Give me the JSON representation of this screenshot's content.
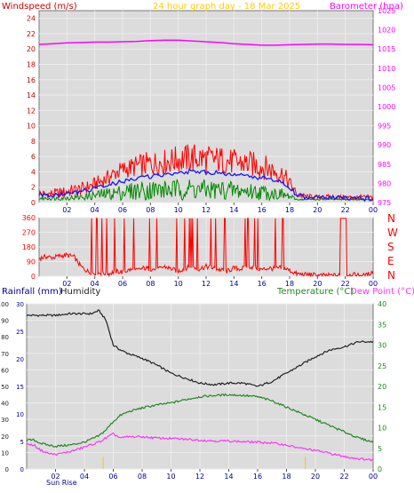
{
  "colors": {
    "background": "#ffffff",
    "plot_bg": "#dcdcdc",
    "wind_axis": "#cc0000",
    "gust": "#ff0000",
    "average": "#1515ff",
    "average_low": "#008800",
    "barometer": "#ff00ff",
    "title": "#ffcc00",
    "direction": "#ff0000",
    "rain_axis": "#000099",
    "humidity": "#222222",
    "temperature": "#228822",
    "dewpoint": "#ff33ff",
    "sun": "#e6d200"
  },
  "top_panel": {
    "title": "24 hour graph day - 18 Mar 2025",
    "left_label": "Windspeed (m/s)",
    "right_label": "Barometer (hpa)",
    "x_ticks": [
      "02",
      "04",
      "06",
      "08",
      "10",
      "12",
      "14",
      "16",
      "18",
      "20",
      "22",
      "00"
    ]
  },
  "direction_panel": {
    "compass_letters": [
      "N",
      "W",
      "S",
      "E",
      "N"
    ],
    "x_ticks": [
      "02",
      "04",
      "06",
      "08",
      "10",
      "12",
      "14",
      "16",
      "18",
      "20",
      "22",
      "00"
    ]
  },
  "bottom_panel": {
    "rainfall_label": "Rainfall (mm)",
    "humidity_label": "Humidity",
    "temperature_label": "Temperature (°C)",
    "dewpoint_label": "Dew Point (°C)",
    "sunrise_label": "Sun Rise",
    "x_ticks": [
      "02",
      "04",
      "06",
      "08",
      "10",
      "12",
      "14",
      "16",
      "18",
      "20",
      "22",
      "00"
    ]
  },
  "chart_data": [
    {
      "type": "line",
      "title": "24 hour graph day - 18 Mar 2025",
      "ylabel": "Windspeed (m/s)",
      "y2label": "Barometer (hpa)",
      "x_range": [
        0,
        24
      ],
      "ylim": [
        0,
        25
      ],
      "y_ticks": [
        0,
        2,
        4,
        6,
        8,
        10,
        12,
        14,
        16,
        18,
        20,
        22,
        24
      ],
      "y2lim": [
        975,
        1025
      ],
      "y2_ticks": [
        975,
        980,
        985,
        990,
        995,
        1000,
        1005,
        1010,
        1015,
        1020,
        1025
      ],
      "grid": true,
      "series": [
        {
          "axis": "left",
          "color": "#ff0000",
          "style": "band",
          "x": [
            0,
            0.5,
            1,
            1.5,
            2,
            2.5,
            3,
            3.5,
            4,
            4.5,
            5,
            5.5,
            6,
            6.5,
            7,
            7.5,
            8,
            8.5,
            9,
            9.5,
            10,
            10.5,
            11,
            11.5,
            12,
            12.5,
            13,
            13.5,
            14,
            14.5,
            15,
            15.5,
            16,
            16.5,
            17,
            17.5,
            18,
            18.5,
            19,
            19.5,
            20,
            20.5,
            21,
            21.5,
            22,
            22.5,
            23,
            23.5,
            24
          ],
          "low": [
            0.5,
            0.5,
            0.6,
            0.5,
            0.6,
            0.8,
            0.9,
            1.2,
            1.5,
            1.8,
            2.2,
            2.8,
            3.0,
            3.2,
            3.3,
            3.3,
            3.4,
            3.5,
            3.6,
            3.7,
            3.8,
            3.8,
            3.8,
            3.8,
            3.8,
            3.7,
            3.7,
            3.6,
            3.5,
            3.4,
            3.3,
            3.2,
            3.0,
            2.8,
            2.6,
            2.3,
            1.5,
            0.6,
            0.5,
            0.4,
            0.4,
            0.4,
            0.4,
            0.4,
            0.3,
            0.3,
            0.3,
            0.3,
            0.3
          ],
          "high": [
            1.8,
            1.6,
            1.8,
            2.0,
            2.2,
            2.4,
            2.6,
            2.9,
            3.3,
            3.8,
            4.3,
            5.0,
            5.5,
            5.8,
            6.2,
            6.5,
            6.7,
            6.8,
            7.0,
            7.2,
            7.5,
            7.6,
            7.8,
            7.8,
            7.6,
            7.5,
            7.4,
            7.2,
            7.0,
            6.9,
            6.8,
            6.6,
            6.4,
            6.0,
            5.6,
            5.0,
            3.5,
            1.6,
            1.2,
            1.1,
            1.0,
            1.0,
            1.1,
            1.0,
            1.0,
            1.0,
            1.0,
            1.0,
            1.0
          ]
        },
        {
          "axis": "left",
          "color": "#008800",
          "style": "band",
          "x": [
            0,
            0.5,
            1,
            1.5,
            2,
            2.5,
            3,
            3.5,
            4,
            4.5,
            5,
            5.5,
            6,
            6.5,
            7,
            7.5,
            8,
            8.5,
            9,
            9.5,
            10,
            10.5,
            11,
            11.5,
            12,
            12.5,
            13,
            13.5,
            14,
            14.5,
            15,
            15.5,
            16,
            16.5,
            17,
            17.5,
            18,
            18.5,
            19,
            19.5,
            20,
            20.5,
            21,
            21.5,
            22,
            22.5,
            23,
            23.5,
            24
          ],
          "low": [
            0.3,
            0.3,
            0.3,
            0.3,
            0.3,
            0.3,
            0.3,
            0.3,
            0.3,
            0.3,
            0.3,
            0.3,
            0.3,
            0.3,
            0.3,
            0.3,
            0.3,
            0.3,
            0.3,
            0.3,
            0.3,
            0.3,
            0.3,
            0.3,
            0.3,
            0.3,
            0.3,
            0.3,
            0.3,
            0.3,
            0.3,
            0.3,
            0.3,
            0.3,
            0.3,
            0.3,
            0.3,
            0.3,
            0.3,
            0.3,
            0.3,
            0.3,
            0.3,
            0.3,
            0.3,
            0.3,
            0.3,
            0.3,
            0.3
          ],
          "high": [
            0.8,
            0.8,
            0.8,
            0.8,
            0.9,
            1.0,
            1.1,
            1.3,
            1.6,
            1.8,
            2.0,
            2.2,
            2.4,
            2.6,
            2.8,
            2.9,
            3.0,
            3.0,
            3.0,
            3.0,
            3.1,
            3.2,
            3.2,
            3.1,
            3.0,
            3.0,
            3.0,
            2.9,
            2.8,
            2.7,
            2.6,
            2.5,
            2.4,
            2.2,
            2.0,
            1.8,
            1.2,
            0.5,
            0.5,
            0.5,
            0.5,
            0.5,
            0.5,
            0.5,
            0.5,
            0.5,
            0.5,
            0.5,
            0.5
          ]
        },
        {
          "axis": "left",
          "color": "#1515ff",
          "style": "line",
          "x": [
            0,
            0.5,
            1,
            1.5,
            2,
            2.5,
            3,
            3.5,
            4,
            4.5,
            5,
            5.5,
            6,
            6.5,
            7,
            7.5,
            8,
            8.5,
            9,
            9.5,
            10,
            10.5,
            11,
            11.5,
            12,
            12.5,
            13,
            13.5,
            14,
            14.5,
            15,
            15.5,
            16,
            16.5,
            17,
            17.5,
            18,
            18.5,
            19,
            19.5,
            20,
            20.5,
            21,
            21.5,
            22,
            22.5,
            23,
            23.5,
            24
          ],
          "values": [
            1.0,
            0.9,
            1.0,
            1.0,
            1.1,
            1.3,
            1.4,
            1.6,
            1.8,
            2.0,
            2.3,
            2.5,
            2.7,
            2.9,
            3.1,
            3.3,
            3.4,
            3.5,
            3.6,
            3.8,
            4.0,
            4.0,
            4.1,
            4.0,
            3.9,
            3.9,
            3.8,
            3.7,
            3.6,
            3.5,
            3.4,
            3.3,
            3.2,
            3.0,
            2.8,
            2.6,
            2.0,
            1.0,
            0.7,
            0.7,
            0.6,
            0.6,
            0.6,
            0.6,
            0.6,
            0.5,
            0.5,
            0.5,
            0.5
          ]
        },
        {
          "name": "Barometer",
          "axis": "right",
          "color": "#ff00ff",
          "style": "line",
          "x": [
            0,
            1,
            2,
            3,
            4,
            5,
            6,
            7,
            8,
            9,
            10,
            11,
            12,
            13,
            14,
            15,
            16,
            17,
            18,
            19,
            20,
            21,
            22,
            23,
            24
          ],
          "values": [
            1016.2,
            1016.4,
            1016.6,
            1016.7,
            1016.8,
            1016.8,
            1016.9,
            1017.0,
            1017.2,
            1017.3,
            1017.3,
            1017.1,
            1016.9,
            1016.7,
            1016.4,
            1016.2,
            1016.0,
            1016.0,
            1016.1,
            1016.2,
            1016.3,
            1016.3,
            1016.2,
            1016.2,
            1016.1
          ]
        }
      ]
    },
    {
      "type": "line",
      "ylabel": "Wind direction",
      "x_range": [
        0,
        24
      ],
      "ylim": [
        0,
        360
      ],
      "y_ticks": [
        0,
        90,
        180,
        270,
        360
      ],
      "grid": true,
      "series": [
        {
          "color": "#ff0000",
          "x": [
            0,
            0.5,
            1,
            1.5,
            2,
            2.5,
            3,
            3.5,
            4,
            4.5,
            5,
            5.5,
            6,
            6.5,
            7,
            7.5,
            8,
            8.5,
            9,
            9.5,
            10,
            10.5,
            11,
            11.5,
            12,
            12.5,
            13,
            13.5,
            14,
            14.5,
            15,
            15.5,
            16,
            16.5,
            17,
            17.5,
            18,
            18.5,
            19,
            19.5,
            20,
            20.5,
            21,
            21.5,
            22,
            22.5,
            23,
            23.5,
            24
          ],
          "values": [
            110,
            120,
            115,
            125,
            130,
            120,
            60,
            30,
            20,
            20,
            15,
            30,
            25,
            40,
            35,
            50,
            45,
            40,
            60,
            45,
            30,
            50,
            55,
            45,
            60,
            50,
            40,
            30,
            50,
            45,
            60,
            55,
            40,
            50,
            45,
            55,
            35,
            15,
            10,
            10,
            5,
            5,
            5,
            5,
            5,
            10,
            5,
            5,
            30
          ]
        }
      ]
    },
    {
      "type": "line",
      "ylabel": "Rainfall (mm)",
      "y2label": "Temperature (°C)",
      "x_range": [
        0,
        24
      ],
      "ylim": [
        0,
        100
      ],
      "y_ticks": [
        0,
        10,
        20,
        30,
        40,
        50,
        60,
        70,
        80,
        90,
        100
      ],
      "rain_ylim": [
        0,
        30
      ],
      "rain_ticks": [
        0,
        5,
        10,
        15,
        20,
        25,
        30
      ],
      "y2lim": [
        0,
        40
      ],
      "y2_ticks": [
        0,
        5,
        10,
        15,
        20,
        25,
        30,
        35,
        40
      ],
      "grid": true,
      "series": [
        {
          "name": "Humidity",
          "axis": "left",
          "color": "#222222",
          "x": [
            0,
            1,
            2,
            3,
            4,
            4.5,
            5,
            5.5,
            6,
            6.5,
            7,
            8,
            9,
            10,
            11,
            12,
            13,
            14,
            15,
            16,
            17,
            18,
            19,
            20,
            21,
            22,
            23,
            24
          ],
          "values": [
            93,
            93,
            93,
            94,
            94,
            94,
            96,
            90,
            75,
            72,
            70,
            67,
            63,
            58,
            55,
            52,
            51,
            52,
            52,
            50,
            53,
            58,
            63,
            68,
            72,
            74,
            77,
            77
          ]
        },
        {
          "name": "Temperature (°C)",
          "axis": "right",
          "color": "#228822",
          "x": [
            0,
            0.5,
            1,
            1.5,
            2,
            3,
            4,
            5,
            5.5,
            6,
            6.5,
            7,
            8,
            9,
            10,
            11,
            12,
            13,
            14,
            15,
            16,
            17,
            18,
            19,
            20,
            21,
            22,
            23,
            24
          ],
          "values": [
            7,
            7,
            6.2,
            5.8,
            5.5,
            5.8,
            6.5,
            8,
            9.5,
            11.5,
            13,
            13.8,
            14.8,
            15.5,
            16,
            16.8,
            17.5,
            17.8,
            18.0,
            17.8,
            17.5,
            16.5,
            15,
            13.5,
            12,
            10.5,
            9,
            7.5,
            6.5
          ]
        },
        {
          "name": "Dew Point (°C)",
          "axis": "right",
          "color": "#ff33ff",
          "x": [
            0,
            0.5,
            1,
            1.5,
            2,
            3,
            4,
            5,
            5.5,
            6,
            6.5,
            7,
            8,
            9,
            10,
            11,
            12,
            13,
            14,
            15,
            16,
            17,
            18,
            19,
            20,
            21,
            22,
            23,
            24
          ],
          "values": [
            6,
            5.8,
            4.5,
            3.8,
            3.5,
            4.2,
            5.3,
            6.5,
            7.5,
            8.5,
            7.5,
            7.8,
            7.8,
            7.5,
            7.4,
            7.2,
            7.0,
            6.8,
            6.8,
            6.6,
            6.5,
            6.3,
            5.8,
            5.0,
            4.5,
            3.8,
            3.0,
            2.5,
            2.2
          ]
        }
      ],
      "sun_markers": [
        5.3,
        19.3
      ]
    }
  ]
}
